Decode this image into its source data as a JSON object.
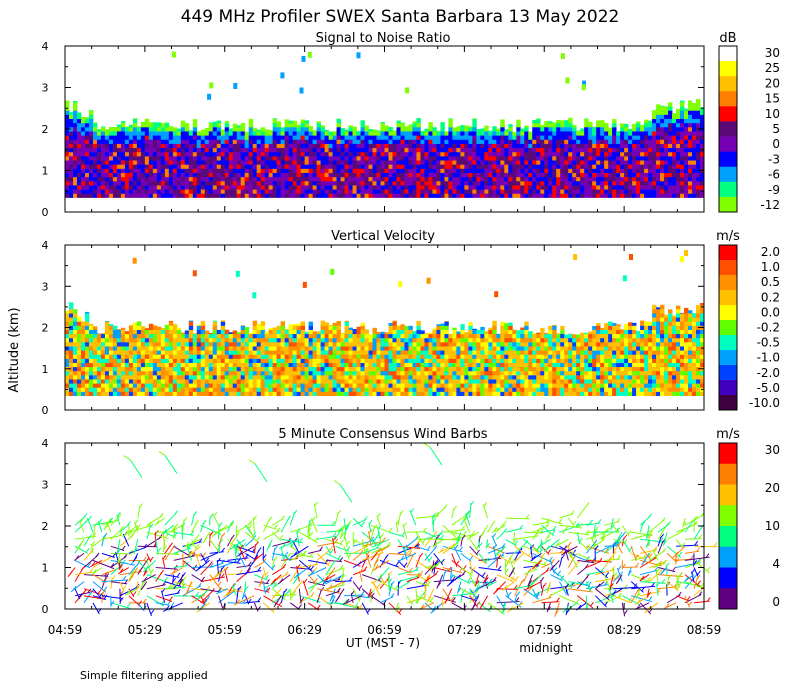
{
  "title": "449 MHz Profiler SWEX Santa Barbara 13 May 2022",
  "y_axis_label": "Altitude (km)",
  "x_axis_label": "UT  (MST - 7)",
  "midnight_label": "midnight",
  "footer_note": "Simple filtering applied",
  "x_ticks": [
    "04:59",
    "05:29",
    "05:59",
    "06:29",
    "06:59",
    "07:29",
    "07:59",
    "08:29",
    "08:59"
  ],
  "y_ticks": [
    "0",
    "1",
    "2",
    "3",
    "4"
  ],
  "chart_data": [
    {
      "type": "heatmap",
      "title": "Signal to Noise Ratio",
      "unit": "dB",
      "ylim": [
        0,
        4
      ],
      "colorbar_labels": [
        "30",
        "25",
        "20",
        "15",
        "10",
        "5",
        "0",
        "-3",
        "-6",
        "-9",
        "-12"
      ],
      "colorbar_colors": [
        "#ffffff",
        "#ffff00",
        "#ffc000",
        "#ff8000",
        "#ff0000",
        "#5a0a78",
        "#7800b4",
        "#0000ff",
        "#00a0ff",
        "#00ff80",
        "#80ff00"
      ],
      "layer_top_km": 2.1,
      "layer_bottom_km": 0.35
    },
    {
      "type": "heatmap",
      "title": "Vertical Velocity",
      "unit": "m/s",
      "ylim": [
        0,
        4
      ],
      "colorbar_labels": [
        "2.0",
        "1.0",
        "0.5",
        "0.2",
        "0.0",
        "-0.2",
        "-0.5",
        "-1.0",
        "-2.0",
        "-5.0",
        "-10.0"
      ],
      "colorbar_colors": [
        "#ff0000",
        "#ff5000",
        "#ff9000",
        "#ffc000",
        "#ffff00",
        "#60ff00",
        "#00ffc0",
        "#00a0ff",
        "#0040ff",
        "#4000c0",
        "#400040"
      ],
      "layer_top_km": 2.0,
      "layer_bottom_km": 0.35
    },
    {
      "type": "scatter",
      "title": "5 Minute Consensus Wind Barbs",
      "unit": "m/s",
      "ylim": [
        0,
        4
      ],
      "colorbar_labels": [
        "30",
        "20",
        "10",
        "4",
        "0"
      ],
      "colorbar_colors": [
        "#ff0000",
        "#ff8000",
        "#ffc000",
        "#80ff00",
        "#00ff80",
        "#00a0ff",
        "#0000ff",
        "#600080"
      ],
      "layer_top_km": 2.1,
      "layer_bottom_km": 0.15
    }
  ]
}
